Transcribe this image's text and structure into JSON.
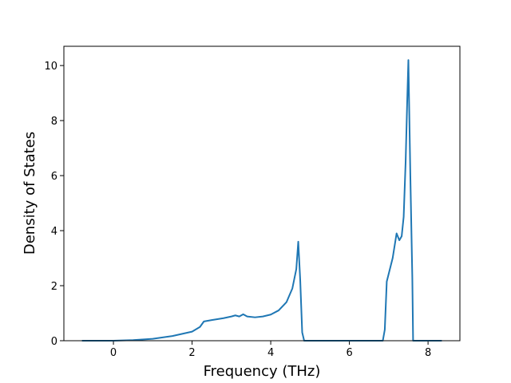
{
  "chart_data": {
    "type": "line",
    "x_label": "Frequency (THz)",
    "y_label": "Density of States",
    "x": [
      -0.8,
      0,
      0.5,
      1,
      1.5,
      2,
      2.2,
      2.3,
      2.5,
      2.8,
      3.0,
      3.1,
      3.2,
      3.3,
      3.4,
      3.6,
      3.8,
      4.0,
      4.2,
      4.4,
      4.55,
      4.65,
      4.7,
      4.75,
      4.8,
      4.85,
      6.85,
      6.9,
      6.95,
      7.1,
      7.2,
      7.27,
      7.33,
      7.38,
      7.43,
      7.47,
      7.5,
      7.55,
      7.6,
      7.62,
      8.35
    ],
    "series": [
      {
        "color": "#1f77b4",
        "values": [
          0,
          0,
          0.02,
          0.07,
          0.17,
          0.33,
          0.5,
          0.7,
          0.75,
          0.82,
          0.88,
          0.92,
          0.88,
          0.96,
          0.88,
          0.85,
          0.88,
          0.95,
          1.1,
          1.4,
          1.9,
          2.6,
          3.6,
          2.2,
          0.3,
          0,
          0,
          0.4,
          2.15,
          3.0,
          3.9,
          3.65,
          3.8,
          4.5,
          6.5,
          8.7,
          10.2,
          6.0,
          2.3,
          0,
          0
        ]
      }
    ],
    "xlim": [
      -1.26,
      8.81
    ],
    "ylim": [
      0,
      10.7
    ],
    "xticks": [
      0,
      2,
      4,
      6,
      8
    ],
    "yticks": [
      0,
      2,
      4,
      6,
      8,
      10
    ]
  }
}
